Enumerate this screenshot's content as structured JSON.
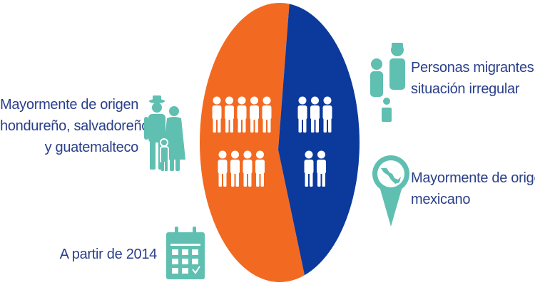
{
  "chart_data": {
    "type": "pie",
    "slices": [
      {
        "value": 57,
        "color": "#f26a22",
        "people_icons": 9
      },
      {
        "value": 43,
        "color": "#0b3a9c",
        "people_icons": 5
      }
    ]
  },
  "annotations": {
    "central_origin": {
      "lines": [
        "Mayormente de origen",
        "hondureño, salvadoreño",
        "y guatemalteco"
      ],
      "icon": "family-icon"
    },
    "since": {
      "text": "A partir de 2014",
      "icon": "calendar-icon"
    },
    "irregular": {
      "lines": [
        "Personas migrantes en",
        "situación irregular"
      ],
      "icon": "migrant-group-icon"
    },
    "mexican": {
      "lines": [
        "Mayormente de origen",
        "mexicano"
      ],
      "icon": "map-pin-mexico-icon"
    }
  },
  "colors": {
    "text": "#2a3f8a",
    "icon": "#5fbfb1",
    "orange": "#f26a22",
    "blue": "#0b3a9c"
  }
}
